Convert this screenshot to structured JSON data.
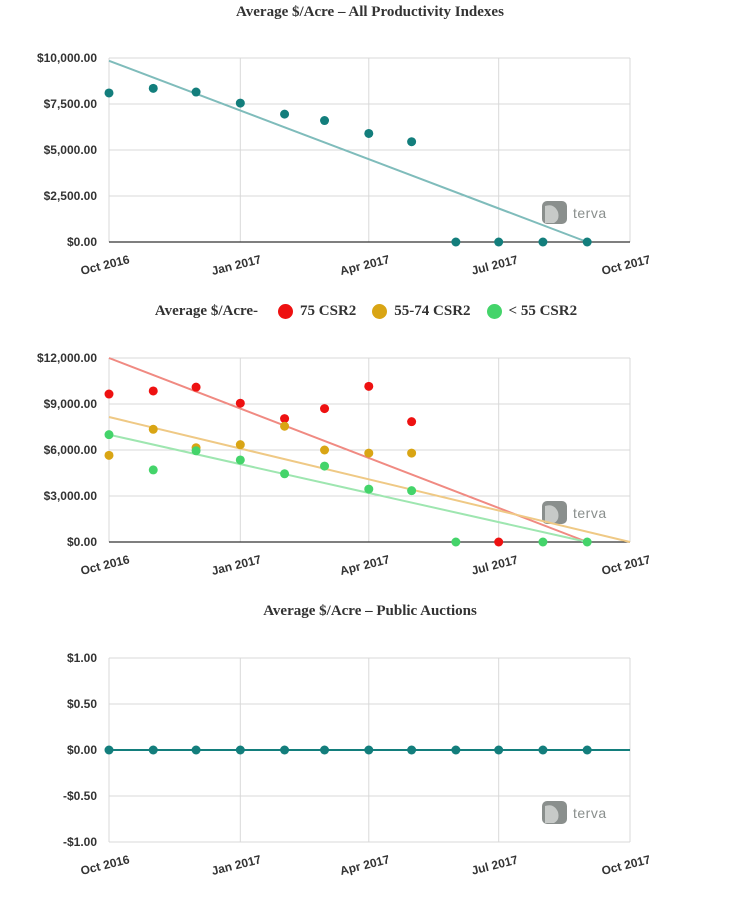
{
  "x_axis": {
    "tick_labels": [
      "Oct 2016",
      "Jan 2017",
      "Apr 2017",
      "Jul 2017",
      "Oct 2017"
    ],
    "tick_dates": [
      "2016-10-01",
      "2017-01-01",
      "2017-04-01",
      "2017-07-01",
      "2017-10-01"
    ]
  },
  "watermark": {
    "text": "terva",
    "color": "#8a8f8d"
  },
  "legend": {
    "prefix": "Average $/Acre-",
    "items": [
      {
        "label": "75 CSR2",
        "color": "#ee1111"
      },
      {
        "label": "55-74 CSR2",
        "color": "#d9a514"
      },
      {
        "label": "< 55 CSR2",
        "color": "#44d46a"
      }
    ]
  },
  "chart_data": [
    {
      "type": "scatter",
      "title": "Average $/Acre – All Productivity Indexes",
      "ylim": [
        0,
        10000
      ],
      "xlim": [
        "2016-10-01",
        "2017-10-01"
      ],
      "yticks": [
        0,
        2500,
        5000,
        7500,
        10000
      ],
      "ytick_labels": [
        "$0.00",
        "$2,500.00",
        "$5,000.00",
        "$7,500.00",
        "$10,000.00"
      ],
      "grid": true,
      "series": [
        {
          "color": "#137e7c",
          "trend_color": "#7fbcbb",
          "x": [
            "2016-10-01",
            "2016-11-01",
            "2016-12-01",
            "2017-01-01",
            "2017-02-01",
            "2017-03-01",
            "2017-04-01",
            "2017-05-01",
            "2017-06-01",
            "2017-07-01",
            "2017-08-01",
            "2017-09-01"
          ],
          "y": [
            8100,
            8350,
            8150,
            7550,
            6950,
            6600,
            5900,
            5450,
            0,
            0,
            0,
            0
          ],
          "trend": {
            "start": [
              "2016-10-01",
              9850
            ],
            "end": [
              "2017-09-01",
              0
            ]
          }
        }
      ]
    },
    {
      "type": "scatter",
      "title": "",
      "ylim": [
        0,
        12000
      ],
      "xlim": [
        "2016-10-01",
        "2017-10-01"
      ],
      "yticks": [
        0,
        3000,
        6000,
        9000,
        12000
      ],
      "ytick_labels": [
        "$0.00",
        "$3,000.00",
        "$6,000.00",
        "$9,000.00",
        "$12,000.00"
      ],
      "grid": true,
      "legend_position": "top",
      "series": [
        {
          "name": "75 CSR2",
          "color": "#ee1111",
          "trend_color": "#f08a82",
          "x": [
            "2016-10-01",
            "2016-11-01",
            "2016-12-01",
            "2017-01-01",
            "2017-02-01",
            "2017-03-01",
            "2017-04-01",
            "2017-05-01",
            "2017-07-01"
          ],
          "y": [
            9650,
            9850,
            10100,
            9050,
            8050,
            8700,
            10150,
            7850,
            0
          ],
          "trend": {
            "start": [
              "2016-10-01",
              12000
            ],
            "end": [
              "2017-09-01",
              0
            ]
          }
        },
        {
          "name": "55-74 CSR2",
          "color": "#d9a514",
          "trend_color": "#efc985",
          "x": [
            "2016-10-01",
            "2016-11-01",
            "2016-12-01",
            "2017-01-01",
            "2017-02-01",
            "2017-03-01",
            "2017-04-01",
            "2017-05-01"
          ],
          "y": [
            5650,
            7350,
            6150,
            6350,
            7550,
            6000,
            5800,
            5800
          ],
          "trend": {
            "start": [
              "2016-10-01",
              8150
            ],
            "end": [
              "2017-10-01",
              0
            ]
          }
        },
        {
          "name": "< 55 CSR2",
          "color": "#44d46a",
          "trend_color": "#9ee6b0",
          "x": [
            "2016-10-01",
            "2016-11-01",
            "2016-12-01",
            "2017-01-01",
            "2017-02-01",
            "2017-03-01",
            "2017-04-01",
            "2017-05-01",
            "2017-06-01",
            "2017-08-01",
            "2017-09-01"
          ],
          "y": [
            7000,
            4700,
            5950,
            5350,
            4450,
            4950,
            3450,
            3350,
            0,
            0,
            0
          ],
          "trend": {
            "start": [
              "2016-10-01",
              7000
            ],
            "end": [
              "2017-09-01",
              0
            ]
          }
        }
      ]
    },
    {
      "type": "scatter",
      "title": "Average $/Acre – Public Auctions",
      "ylim": [
        -1,
        1
      ],
      "xlim": [
        "2016-10-01",
        "2017-10-01"
      ],
      "yticks": [
        -1,
        -0.5,
        0,
        0.5,
        1
      ],
      "ytick_labels": [
        "-$1.00",
        "-$0.50",
        "$0.00",
        "$0.50",
        "$1.00"
      ],
      "grid": true,
      "series": [
        {
          "color": "#137e7c",
          "trend_color": "#137e7c",
          "x": [
            "2016-10-01",
            "2016-11-01",
            "2016-12-01",
            "2017-01-01",
            "2017-02-01",
            "2017-03-01",
            "2017-04-01",
            "2017-05-01",
            "2017-06-01",
            "2017-07-01",
            "2017-08-01",
            "2017-09-01"
          ],
          "y": [
            0,
            0,
            0,
            0,
            0,
            0,
            0,
            0,
            0,
            0,
            0,
            0
          ],
          "trend": {
            "start": [
              "2016-10-01",
              0
            ],
            "end": [
              "2017-10-01",
              0
            ]
          }
        }
      ]
    }
  ]
}
